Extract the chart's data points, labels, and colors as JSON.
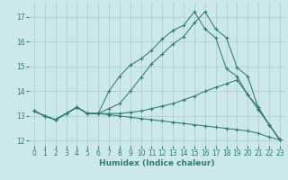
{
  "xlabel": "Humidex (Indice chaleur)",
  "bg_color": "#cce8e8",
  "grid_color": "#aacccc",
  "line_color": "#2d7d6e",
  "xlim": [
    -0.5,
    23.5
  ],
  "ylim": [
    11.8,
    17.6
  ],
  "yticks": [
    12,
    13,
    14,
    15,
    16,
    17
  ],
  "xticks": [
    0,
    1,
    2,
    3,
    4,
    5,
    6,
    7,
    8,
    9,
    10,
    11,
    12,
    13,
    14,
    15,
    16,
    17,
    18,
    19,
    20,
    21,
    22,
    23
  ],
  "lines": [
    {
      "x": [
        0,
        1,
        2,
        3,
        4,
        5,
        6,
        7,
        8,
        9,
        10,
        11,
        12,
        13,
        14,
        15,
        16,
        17,
        18,
        19,
        20,
        21,
        22,
        23
      ],
      "y": [
        13.2,
        13.0,
        12.85,
        13.1,
        13.35,
        13.1,
        13.1,
        14.0,
        14.6,
        15.05,
        15.3,
        15.65,
        16.1,
        16.45,
        16.65,
        17.2,
        16.5,
        16.15,
        14.9,
        14.6,
        13.85,
        13.35,
        12.65,
        12.05
      ]
    },
    {
      "x": [
        0,
        1,
        2,
        3,
        4,
        5,
        6,
        7,
        8,
        9,
        10,
        11,
        12,
        13,
        14,
        15,
        16,
        17,
        18,
        19,
        20,
        21,
        22,
        23
      ],
      "y": [
        13.2,
        13.0,
        12.85,
        13.1,
        13.35,
        13.1,
        13.1,
        13.1,
        13.1,
        13.15,
        13.2,
        13.3,
        13.4,
        13.5,
        13.65,
        13.8,
        14.0,
        14.15,
        14.3,
        14.45,
        13.85,
        13.25,
        12.65,
        12.05
      ]
    },
    {
      "x": [
        0,
        1,
        2,
        3,
        4,
        5,
        6,
        7,
        8,
        9,
        10,
        11,
        12,
        13,
        14,
        15,
        16,
        17,
        18,
        19,
        20,
        21,
        22,
        23
      ],
      "y": [
        13.2,
        13.0,
        12.85,
        13.1,
        13.35,
        13.1,
        13.1,
        13.05,
        13.0,
        12.95,
        12.9,
        12.85,
        12.8,
        12.75,
        12.7,
        12.65,
        12.6,
        12.55,
        12.5,
        12.45,
        12.4,
        12.3,
        12.15,
        12.05
      ]
    },
    {
      "x": [
        0,
        1,
        2,
        3,
        4,
        5,
        6,
        7,
        8,
        9,
        10,
        11,
        12,
        13,
        14,
        15,
        16,
        17,
        18,
        19,
        20,
        21,
        22,
        23
      ],
      "y": [
        13.2,
        13.0,
        12.85,
        13.1,
        13.35,
        13.1,
        13.1,
        13.3,
        13.5,
        14.0,
        14.55,
        15.1,
        15.5,
        15.9,
        16.2,
        16.75,
        17.2,
        16.5,
        16.15,
        14.95,
        14.6,
        13.3,
        12.65,
        12.05
      ]
    }
  ]
}
